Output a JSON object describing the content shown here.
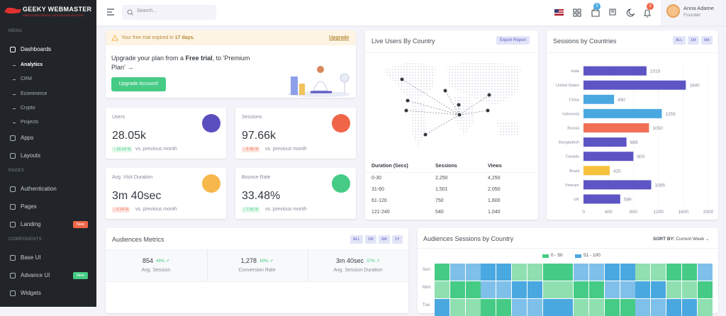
{
  "sidebar": {
    "logo": "GEEKY WEBMASTER",
    "tagline": "WEB DEVELOPMENT, DESIGN AND HOSTING",
    "sections": [
      {
        "title": "MENU",
        "items": [
          {
            "label": "Dashboards",
            "children": [
              "Analytics",
              "CRM",
              "Ecommerce",
              "Crypto",
              "Projects"
            ]
          },
          {
            "label": "Apps"
          },
          {
            "label": "Layouts"
          }
        ]
      },
      {
        "title": "PAGES",
        "items": [
          {
            "label": "Authentication"
          },
          {
            "label": "Pages"
          },
          {
            "label": "Landing",
            "badge": "New"
          }
        ]
      },
      {
        "title": "COMPONENTS",
        "items": [
          {
            "label": "Base UI"
          },
          {
            "label": "Advance UI",
            "badge": "New"
          },
          {
            "label": "Widgets"
          }
        ]
      }
    ]
  },
  "topbar": {
    "search_placeholder": "Search...",
    "badges": [
      "5",
      "3"
    ],
    "user": {
      "name": "Anna Adame",
      "role": "Founder"
    }
  },
  "trial": {
    "alert": "Your free trial expired in",
    "alert_bold": "17 days.",
    "link": "Upgrade",
    "text1": "Upgrade your plan from a",
    "text_bold": "Free trial",
    "text2": ", to 'Premium Plan' →",
    "button": "Upgrade Account!"
  },
  "stats": [
    {
      "label": "Users",
      "value": "28.05k",
      "change": "↑ 16.24 %",
      "note": "vs. previous month",
      "trend": "up",
      "icon_color": "#5b4fbf"
    },
    {
      "label": "Sessions",
      "value": "97.66k",
      "change": "↓ 3.96 %",
      "note": "vs. previous month",
      "trend": "down",
      "icon_color": "#f06548"
    },
    {
      "label": "Avg. Visit Duration",
      "value": "3m 40sec",
      "change": "↓ 0.24 %",
      "note": "vs. previous month",
      "trend": "down",
      "icon_color": "#f7b84b"
    },
    {
      "label": "Bounce Rate",
      "value": "33.48%",
      "change": "↑ 7.05 %",
      "note": "vs. previous month",
      "trend": "up",
      "icon_color": "#45cb85"
    }
  ],
  "live_users": {
    "title": "Live Users By Country",
    "button": "Export Report",
    "table": {
      "header": [
        "Duration (Secs)",
        "Sessions",
        "Views"
      ],
      "rows": [
        [
          "0-30",
          "2,250",
          "4,250"
        ],
        [
          "31-60",
          "1,501",
          "2,050"
        ],
        [
          "61-120",
          "750",
          "1,600"
        ],
        [
          "121-240",
          "540",
          "1,040"
        ]
      ]
    }
  },
  "sessions_chart": {
    "type": "bar",
    "orientation": "horizontal",
    "title": "Sessions by Countries",
    "filters": [
      "ALL",
      "1M",
      "6M"
    ],
    "categories": [
      "India",
      "United States",
      "China",
      "Indonesia",
      "Russia",
      "Bangladesh",
      "Canada",
      "Brazil",
      "Vietnam",
      "UK"
    ],
    "values": [
      1010,
      1640,
      490,
      1255,
      1050,
      689,
      800,
      420,
      1085,
      589
    ],
    "colors": [
      "#5d55c4",
      "#5d55c4",
      "#4aa8e0",
      "#4aa8e0",
      "#f06f55",
      "#5d55c4",
      "#5d55c4",
      "#f7c23b",
      "#5d55c4",
      "#5d55c4"
    ],
    "xlim": [
      0,
      2000
    ],
    "xticks": [
      0,
      400,
      800,
      1200,
      1600,
      2000
    ]
  },
  "metrics": {
    "title": "Audiences Metrics",
    "filters": [
      "ALL",
      "1M",
      "6M",
      "1Y"
    ],
    "items": [
      {
        "value": "854",
        "change": "49% ↗",
        "label": "Avg. Session"
      },
      {
        "value": "1,278",
        "change": "60% ↗",
        "label": "Conversion Rate"
      },
      {
        "value": "3m 40sec",
        "change": "37% ↗",
        "label": "Avg. Session Duration"
      }
    ]
  },
  "heatmap": {
    "title": "Audiences Sessions by Country",
    "sort_label": "SORT BY:",
    "sort_value": "Current Week ⌄",
    "legend": [
      {
        "label": "0 - 50",
        "color": "#45cb85"
      },
      {
        "label": "51 - 100",
        "color": "#4aa8e0"
      }
    ],
    "rows": [
      "Sun",
      "Mon",
      "Tue"
    ]
  }
}
